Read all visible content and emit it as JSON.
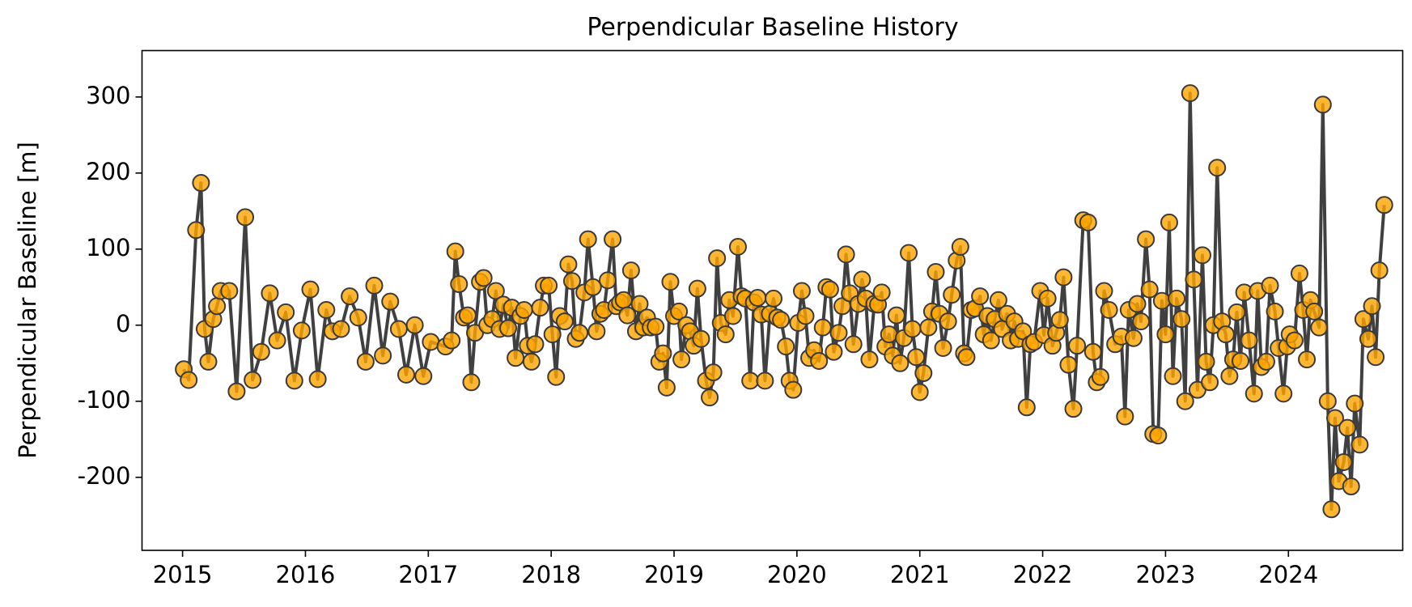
{
  "chart_data": {
    "type": "line",
    "title": "Perpendicular Baseline History",
    "y_label": "Perpendicular Baseline [m]",
    "line_color": "#404040",
    "marker_color": "#ffa500",
    "marker_edge_color": "#3a3a3a",
    "xlim": [
      2014.67,
      2024.93
    ],
    "ylim": [
      -296,
      361
    ],
    "xticks": [
      2015,
      2016,
      2017,
      2018,
      2019,
      2020,
      2021,
      2022,
      2023,
      2024
    ],
    "yticks": [
      -200,
      -100,
      0,
      100,
      200,
      300
    ],
    "grid": false,
    "x": [
      2015.01,
      2015.05,
      2015.11,
      2015.15,
      2015.18,
      2015.21,
      2015.25,
      2015.28,
      2015.31,
      2015.38,
      2015.44,
      2015.51,
      2015.57,
      2015.64,
      2015.71,
      2015.77,
      2015.84,
      2015.91,
      2015.97,
      2016.04,
      2016.1,
      2016.17,
      2016.22,
      2016.29,
      2016.36,
      2016.43,
      2016.49,
      2016.56,
      2016.63,
      2016.69,
      2016.76,
      2016.82,
      2016.89,
      2016.96,
      2017.02,
      2017.14,
      2017.19,
      2017.22,
      2017.25,
      2017.29,
      2017.32,
      2017.35,
      2017.38,
      2017.42,
      2017.45,
      2017.48,
      2017.52,
      2017.55,
      2017.58,
      2017.61,
      2017.65,
      2017.68,
      2017.71,
      2017.75,
      2017.78,
      2017.81,
      2017.84,
      2017.87,
      2017.91,
      2017.94,
      2017.98,
      2018.01,
      2018.04,
      2018.07,
      2018.11,
      2018.14,
      2018.17,
      2018.2,
      2018.23,
      2018.27,
      2018.3,
      2018.34,
      2018.37,
      2018.4,
      2018.43,
      2018.46,
      2018.5,
      2018.53,
      2018.56,
      2018.59,
      2018.62,
      2018.65,
      2018.69,
      2018.72,
      2018.75,
      2018.78,
      2018.81,
      2018.85,
      2018.88,
      2018.91,
      2018.94,
      2018.97,
      2019.0,
      2019.04,
      2019.06,
      2019.1,
      2019.13,
      2019.16,
      2019.19,
      2019.22,
      2019.26,
      2019.29,
      2019.32,
      2019.35,
      2019.38,
      2019.42,
      2019.45,
      2019.48,
      2019.52,
      2019.55,
      2019.58,
      2019.62,
      2019.65,
      2019.68,
      2019.71,
      2019.74,
      2019.78,
      2019.81,
      2019.84,
      2019.87,
      2019.91,
      2019.94,
      2019.97,
      2020.01,
      2020.04,
      2020.07,
      2020.1,
      2020.14,
      2020.18,
      2020.21,
      2020.24,
      2020.27,
      2020.3,
      2020.34,
      2020.37,
      2020.4,
      2020.43,
      2020.46,
      2020.5,
      2020.53,
      2020.56,
      2020.59,
      2020.63,
      2020.66,
      2020.69,
      2020.72,
      2020.75,
      2020.78,
      2020.81,
      2020.84,
      2020.87,
      2020.91,
      2020.94,
      2020.97,
      2021.0,
      2021.03,
      2021.07,
      2021.1,
      2021.13,
      2021.16,
      2021.19,
      2021.23,
      2021.26,
      2021.3,
      2021.33,
      2021.36,
      2021.38,
      2021.42,
      2021.45,
      2021.49,
      2021.52,
      2021.55,
      2021.58,
      2021.61,
      2021.64,
      2021.67,
      2021.71,
      2021.74,
      2021.77,
      2021.8,
      2021.84,
      2021.87,
      2021.9,
      2021.93,
      2021.98,
      2022.01,
      2022.04,
      2022.08,
      2022.11,
      2022.14,
      2022.17,
      2022.21,
      2022.25,
      2022.28,
      2022.33,
      2022.37,
      2022.41,
      2022.44,
      2022.47,
      2022.5,
      2022.54,
      2022.59,
      2022.64,
      2022.67,
      2022.7,
      2022.74,
      2022.77,
      2022.8,
      2022.84,
      2022.87,
      2022.9,
      2022.94,
      2022.97,
      2023.0,
      2023.03,
      2023.06,
      2023.09,
      2023.13,
      2023.16,
      2023.2,
      2023.23,
      2023.26,
      2023.3,
      2023.33,
      2023.36,
      2023.39,
      2023.42,
      2023.46,
      2023.49,
      2023.52,
      2023.55,
      2023.58,
      2023.61,
      2023.64,
      2023.68,
      2023.72,
      2023.75,
      2023.78,
      2023.82,
      2023.85,
      2023.89,
      2023.92,
      2023.96,
      2023.99,
      2024.01,
      2024.05,
      2024.09,
      2024.12,
      2024.15,
      2024.18,
      2024.21,
      2024.25,
      2024.28,
      2024.32,
      2024.35,
      2024.38,
      2024.41,
      2024.45,
      2024.48,
      2024.51,
      2024.54,
      2024.58,
      2024.61,
      2024.65,
      2024.68,
      2024.71,
      2024.74,
      2024.78
    ],
    "values": [
      -58,
      -72,
      125,
      187,
      -5,
      -48,
      8,
      25,
      45,
      45,
      -87,
      142,
      -72,
      -35,
      42,
      -20,
      17,
      -73,
      -7,
      47,
      -71,
      20,
      -8,
      -5,
      38,
      10,
      -48,
      52,
      -40,
      31,
      -5,
      -65,
      0,
      -67,
      -22,
      -28,
      -20,
      97,
      54,
      10,
      13,
      -75,
      -10,
      57,
      62,
      0,
      8,
      45,
      -5,
      27,
      -4,
      23,
      -43,
      12,
      20,
      -27,
      -48,
      -25,
      23,
      52,
      52,
      -12,
      -68,
      12,
      5,
      80,
      58,
      -18,
      -10,
      43,
      113,
      50,
      -8,
      15,
      20,
      59,
      113,
      25,
      30,
      33,
      13,
      72,
      -8,
      28,
      -3,
      10,
      -3,
      -2,
      -48,
      -37,
      -82,
      57,
      12,
      18,
      -45,
      0,
      -8,
      -27,
      48,
      -18,
      -73,
      -95,
      -62,
      88,
      3,
      -12,
      33,
      12,
      103,
      38,
      35,
      -73,
      30,
      36,
      14,
      -73,
      15,
      35,
      10,
      7,
      -28,
      -73,
      -85,
      3,
      45,
      12,
      -43,
      -33,
      -47,
      -3,
      50,
      47,
      -35,
      -10,
      25,
      93,
      42,
      -25,
      28,
      60,
      35,
      -45,
      28,
      27,
      43,
      -28,
      -12,
      -40,
      13,
      -50,
      -17,
      95,
      -5,
      -42,
      -88,
      -63,
      -3,
      18,
      70,
      15,
      -30,
      5,
      40,
      85,
      103,
      -37,
      -42,
      20,
      22,
      38,
      -12,
      12,
      -20,
      8,
      33,
      -5,
      15,
      -20,
      5,
      -18,
      -8,
      -108,
      -25,
      -22,
      45,
      -13,
      35,
      -27,
      -10,
      7,
      63,
      -52,
      -110,
      -27,
      138,
      135,
      -35,
      -75,
      -68,
      45,
      20,
      -25,
      -15,
      -120,
      20,
      -17,
      28,
      5,
      113,
      47,
      -143,
      -145,
      32,
      -12,
      135,
      -67,
      35,
      8,
      -100,
      305,
      60,
      -85,
      92,
      -48,
      -75,
      0,
      207,
      5,
      -12,
      -67,
      -45,
      17,
      -47,
      43,
      -20,
      -90,
      45,
      -55,
      -48,
      52,
      18,
      -30,
      -90,
      -28,
      -12,
      -20,
      68,
      20,
      -45,
      33,
      18,
      -3,
      290,
      -100,
      -242,
      -122,
      -205,
      -180,
      -135,
      -212,
      -103,
      -157,
      8,
      -18,
      25,
      -42,
      72,
      158
    ]
  }
}
